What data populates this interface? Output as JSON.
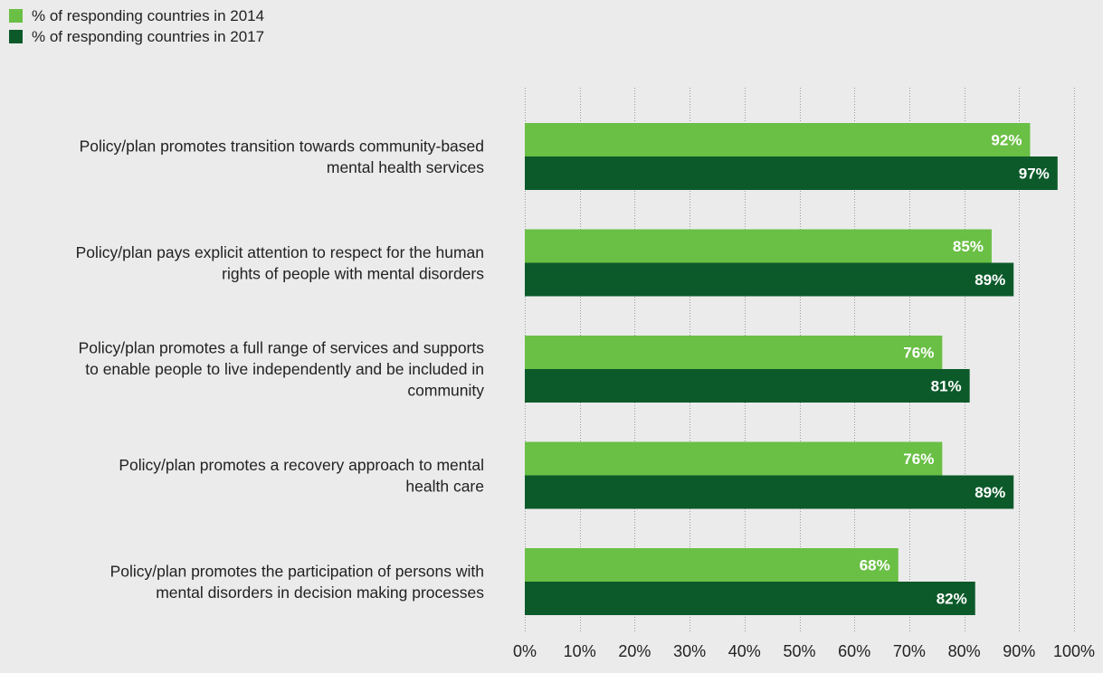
{
  "colors": {
    "background": "#ebebeb",
    "series_2014": "#6abf45",
    "series_2017": "#0c5a2a",
    "text": "#222222",
    "bar_label": "#ffffff"
  },
  "legend": [
    {
      "label": "% of responding countries in 2014",
      "color": "#6abf45"
    },
    {
      "label": "% of responding countries in 2017",
      "color": "#0c5a2a"
    }
  ],
  "chart_data": {
    "type": "bar",
    "orientation": "horizontal",
    "categories": [
      [
        "Policy/plan promotes transition towards community-based",
        "mental health services"
      ],
      [
        "Policy/plan pays explicit attention to respect for the human",
        "rights of people with mental disorders"
      ],
      [
        "Policy/plan promotes a full range of services and supports",
        "to enable people to live independently and be included in",
        "community"
      ],
      [
        "Policy/plan promotes a recovery approach to mental",
        "health care"
      ],
      [
        "Policy/plan promotes the participation of persons with",
        "mental disorders in decision making processes"
      ]
    ],
    "series": [
      {
        "name": "% of responding countries in 2014",
        "color": "#6abf45",
        "values": [
          92,
          85,
          76,
          76,
          68
        ],
        "labels": [
          "92%",
          "85%",
          "76%",
          "76%",
          "68%"
        ]
      },
      {
        "name": "% of responding countries in 2017",
        "color": "#0c5a2a",
        "values": [
          97,
          89,
          81,
          89,
          82
        ],
        "labels": [
          "97%",
          "89%",
          "81%",
          "89%",
          "82%"
        ]
      }
    ],
    "xlim": [
      0,
      100
    ],
    "xticks": [
      0,
      10,
      20,
      30,
      40,
      50,
      60,
      70,
      80,
      90,
      100
    ],
    "xtick_labels": [
      "0%",
      "10%",
      "20%",
      "30%",
      "40%",
      "50%",
      "60%",
      "70%",
      "80%",
      "90%",
      "100%"
    ],
    "grid": "vertical-dotted",
    "legend_position": "top-left"
  }
}
